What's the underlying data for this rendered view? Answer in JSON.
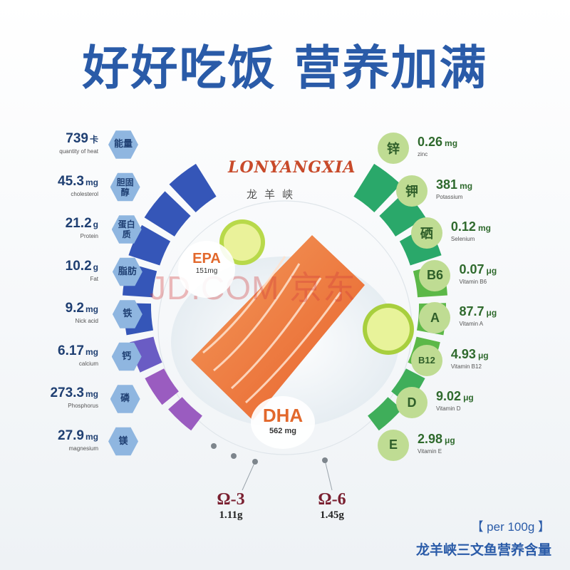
{
  "headline": "好好吃饭 营养加满",
  "brand": {
    "logo_text": "LONYANGXIA",
    "cn_name": "龙羊峡"
  },
  "left_nutrients": [
    {
      "value": "739",
      "unit": "卡",
      "sub": "quantity of heat",
      "badge": "能量"
    },
    {
      "value": "45.3",
      "unit": "mg",
      "sub": "cholesterol",
      "badge": "胆固醇"
    },
    {
      "value": "21.2",
      "unit": "g",
      "sub": "Protein",
      "badge": "蛋白质"
    },
    {
      "value": "10.2",
      "unit": "g",
      "sub": "Fat",
      "badge": "脂肪"
    },
    {
      "value": "9.2",
      "unit": "mg",
      "sub": "Nick acid",
      "badge": "铁"
    },
    {
      "value": "6.17",
      "unit": "mg",
      "sub": "calcium",
      "badge": "钙"
    },
    {
      "value": "273.3",
      "unit": "mg",
      "sub": "Phosphorus",
      "badge": "磷"
    },
    {
      "value": "27.9",
      "unit": "mg",
      "sub": "magnesium",
      "badge": "镁"
    }
  ],
  "right_nutrients": [
    {
      "badge": "锌",
      "value": "0.26",
      "unit": "mg",
      "sub": "zinc"
    },
    {
      "badge": "钾",
      "value": "381",
      "unit": "mg",
      "sub": "Potassium"
    },
    {
      "badge": "硒",
      "value": "0.12",
      "unit": "mg",
      "sub": "Selenium"
    },
    {
      "badge": "B6",
      "value": "0.07",
      "unit": "μg",
      "sub": "Vitamin B6"
    },
    {
      "badge": "A",
      "value": "87.7",
      "unit": "μg",
      "sub": "Vitamin A"
    },
    {
      "badge": "B12",
      "value": "4.93",
      "unit": "μg",
      "sub": "Vitamin B12"
    },
    {
      "badge": "D",
      "value": "9.02",
      "unit": "μg",
      "sub": "Vitamin D"
    },
    {
      "badge": "E",
      "value": "2.98",
      "unit": "μg",
      "sub": "Vitamin E"
    }
  ],
  "epa": {
    "label": "EPA",
    "amount": "151mg"
  },
  "dha": {
    "label": "DHA",
    "amount": "562 mg"
  },
  "omega3": {
    "label": "Ω-3",
    "amount": "1.11g"
  },
  "omega6": {
    "label": "Ω-6",
    "amount": "1.45g"
  },
  "watermark": "JD.COM 京东",
  "per_label": "【 per 100g 】",
  "footer": "龙羊峡三文鱼营养含量",
  "colors": {
    "title_blue": "#2a5ba8",
    "left_arc_blue": "#3556b8",
    "left_arc_purple": "#8a5cc0",
    "right_arc_green": "#2aa86a",
    "salmon": "#f07a3c",
    "omega_red": "#7a2030"
  }
}
